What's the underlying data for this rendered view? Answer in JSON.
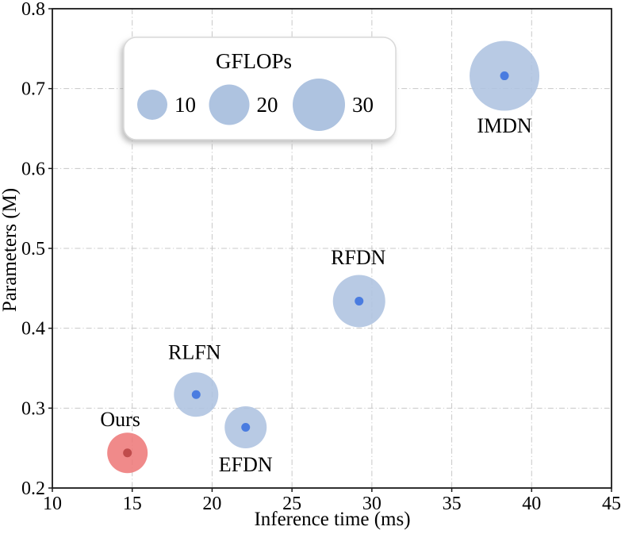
{
  "figure": {
    "background": "#ffffff"
  },
  "colors": {
    "blue_bubble": "#aec3e0",
    "blue_dot": "#4a7ce0",
    "red_bubble": "#ee7a7a",
    "red_dot": "#c04c4c",
    "grid": "#c8c8c8",
    "spine": "#1a1a1a",
    "legend_border": "#d9d9d9"
  },
  "chart_data": {
    "type": "scatter",
    "subtype": "bubble",
    "title": "",
    "xlabel": "Inference time (ms)",
    "ylabel": "Parameters (M)",
    "xlim": [
      10,
      45
    ],
    "ylim": [
      0.2,
      0.8
    ],
    "grid": "dash-dot",
    "xticks": [
      {
        "v": 10,
        "label": "10"
      },
      {
        "v": 15,
        "label": "15"
      },
      {
        "v": 20,
        "label": "20"
      },
      {
        "v": 25,
        "label": "25"
      },
      {
        "v": 30,
        "label": "30"
      },
      {
        "v": 35,
        "label": "35"
      },
      {
        "v": 40,
        "label": "40"
      },
      {
        "v": 45,
        "label": "45"
      }
    ],
    "yticks": [
      {
        "v": 0.2,
        "label": "0.2"
      },
      {
        "v": 0.3,
        "label": "0.3"
      },
      {
        "v": 0.4,
        "label": "0.4"
      },
      {
        "v": 0.5,
        "label": "0.5"
      },
      {
        "v": 0.6,
        "label": "0.6"
      },
      {
        "v": 0.7,
        "label": "0.7"
      },
      {
        "v": 0.8,
        "label": "0.8"
      }
    ],
    "size_unit": "GFLOPs",
    "points": [
      {
        "name": "Ours",
        "x": 14.7,
        "y": 0.244,
        "gflops_est": 18,
        "radius_px": 25.5,
        "fill": "#ee7a7a",
        "dot": "#c04c4c",
        "label_offset": [
          -9,
          -42
        ]
      },
      {
        "name": "RLFN",
        "x": 19.0,
        "y": 0.317,
        "gflops_est": 22,
        "radius_px": 28,
        "fill": "#aec3e0",
        "dot": "#4a7ce0",
        "label_offset": [
          -2,
          -53
        ]
      },
      {
        "name": "EFDN",
        "x": 22.1,
        "y": 0.276,
        "gflops_est": 20,
        "radius_px": 26.5,
        "fill": "#aec3e0",
        "dot": "#4a7ce0",
        "label_offset": [
          0,
          47
        ]
      },
      {
        "name": "RFDN",
        "x": 29.2,
        "y": 0.434,
        "gflops_est": 31,
        "radius_px": 33,
        "fill": "#aec3e0",
        "dot": "#4a7ce0",
        "label_offset": [
          -1,
          -55
        ]
      },
      {
        "name": "IMDN",
        "x": 38.3,
        "y": 0.716,
        "gflops_est": 55,
        "radius_px": 44,
        "fill": "#aec3e0",
        "dot": "#4a7ce0",
        "label_offset": [
          0,
          63
        ]
      }
    ],
    "legend": {
      "title": "GFLOPs",
      "position": "upper-left",
      "bubble_color": "#aec3e0",
      "items": [
        {
          "label": "10",
          "radius_px": 19
        },
        {
          "label": "20",
          "radius_px": 25.5
        },
        {
          "label": "30",
          "radius_px": 33
        }
      ]
    }
  }
}
